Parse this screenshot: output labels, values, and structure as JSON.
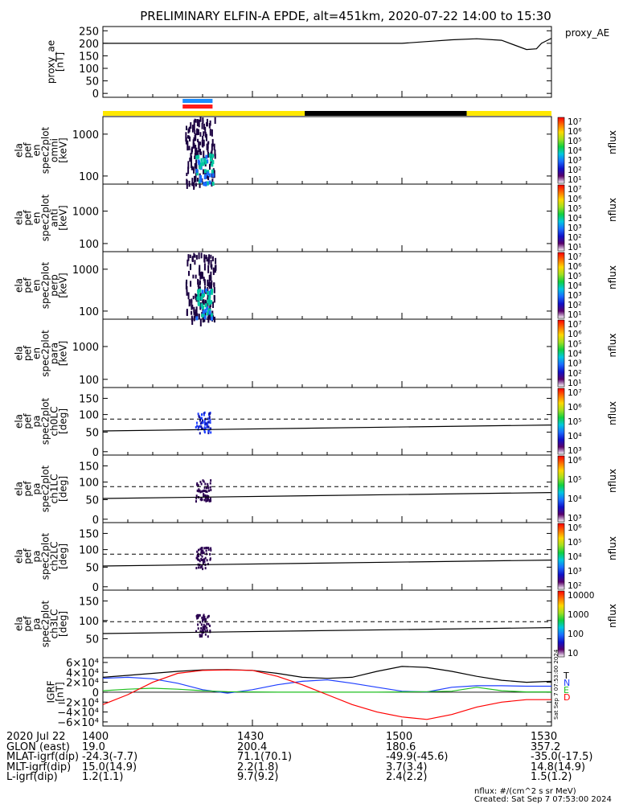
{
  "title": "PRELIMINARY ELFIN-A EPDE, alt=451km, 2020-07-22 14:00 to 15:30",
  "colors": {
    "yellow": "#ffe800",
    "black": "#000000",
    "blue_bar": "#1a8cff",
    "red_bar": "#ff1a1a",
    "T": "#000000",
    "N": "#1f3fff",
    "E": "#20c020",
    "D": "#ff0000"
  },
  "panels": [
    {
      "key": "proxy_ae",
      "ylabel": [
        "proxy_ae",
        "[nT]"
      ],
      "right_label": "proxy_AE",
      "ticks": [
        "250",
        "200",
        "150",
        "100",
        "50",
        "0"
      ]
    },
    {
      "key": "omni",
      "ylabel": [
        "ela",
        "pef",
        "en",
        "spec2plot",
        "omni",
        "[keV]"
      ],
      "ticks": [
        "1000",
        "100"
      ],
      "cbar_ticks": [
        "10⁷",
        "10⁶",
        "10⁵",
        "10⁴",
        "10³",
        "10²",
        "10¹"
      ],
      "cbar_label": "nflux"
    },
    {
      "key": "anti",
      "ylabel": [
        "ela",
        "pef",
        "en",
        "spec2plot",
        "anti",
        "[keV]"
      ],
      "ticks": [
        "1000",
        "100"
      ],
      "cbar_ticks": [
        "10⁷",
        "10⁶",
        "10⁵",
        "10⁴",
        "10³",
        "10²",
        "10¹"
      ],
      "cbar_label": "nflux"
    },
    {
      "key": "perp",
      "ylabel": [
        "ela",
        "pef",
        "en",
        "spec2plot",
        "perp",
        "[keV]"
      ],
      "ticks": [
        "1000",
        "100"
      ],
      "cbar_ticks": [
        "10⁷",
        "10⁶",
        "10⁵",
        "10⁴",
        "10³",
        "10²",
        "10¹"
      ],
      "cbar_label": "nflux"
    },
    {
      "key": "para",
      "ylabel": [
        "ela",
        "pef",
        "en",
        "spec2plot",
        "para",
        "[keV]"
      ],
      "ticks": [
        "1000",
        "100"
      ],
      "cbar_ticks": [
        "10⁷",
        "10⁶",
        "10⁵",
        "10⁴",
        "10³",
        "10²",
        "10¹"
      ],
      "cbar_label": "nflux"
    },
    {
      "key": "ch0",
      "ylabel": [
        "ela",
        "pef",
        "pa",
        "spec2plot",
        "ch0LC",
        "[deg]"
      ],
      "ticks": [
        "150",
        "100",
        "50",
        "0"
      ],
      "cbar_ticks": [
        "10⁷",
        "10⁶",
        "10⁵",
        "10⁴",
        "10³"
      ],
      "cbar_label": "nflux"
    },
    {
      "key": "ch1",
      "ylabel": [
        "ela",
        "pef",
        "pa",
        "spec2plot",
        "ch1LC",
        "[deg]"
      ],
      "ticks": [
        "150",
        "100",
        "50",
        "0"
      ],
      "cbar_ticks": [
        "10⁶",
        "10⁵",
        "10⁴",
        "10³"
      ],
      "cbar_label": "nflux"
    },
    {
      "key": "ch2",
      "ylabel": [
        "ela",
        "pef",
        "pa",
        "spec2plot",
        "ch2LC",
        "[deg]"
      ],
      "ticks": [
        "150",
        "100",
        "50",
        "0"
      ],
      "cbar_ticks": [
        "10⁶",
        "10⁵",
        "10⁴",
        "10³",
        "10²"
      ],
      "cbar_label": "nflux"
    },
    {
      "key": "ch3",
      "ylabel": [
        "ela",
        "pef",
        "pa",
        "spec2plot",
        "ch3LC",
        "[deg]"
      ],
      "ticks": [
        "150",
        "100",
        "50"
      ],
      "cbar_ticks": [
        "10000",
        "1000",
        "100",
        "10"
      ],
      "cbar_label": "nflux"
    },
    {
      "key": "igrf",
      "ylabel": [
        "IGRF",
        "[nT]"
      ],
      "ticks": [
        "6×10⁴",
        "4×10⁴",
        "2×10⁴",
        "0",
        "−2×10⁴",
        "−4×10⁴",
        "−6×10⁴"
      ],
      "legend": [
        "T",
        "N",
        "E",
        "D"
      ],
      "side_text": "Sat Sep  7 07:53:00 2024"
    }
  ],
  "chart_data": {
    "type": "line",
    "time_range": [
      "2020-07-22 14:00",
      "2020-07-22 15:30"
    ],
    "x_tick_labels": [
      "1400",
      "1430",
      "1500",
      "1530"
    ],
    "proxy_ae": {
      "ylim": [
        0,
        260
      ],
      "t_min": [
        0,
        10,
        20,
        30,
        40,
        50,
        60,
        65,
        70,
        75,
        80,
        83,
        85,
        87,
        88,
        90
      ],
      "value": [
        200,
        200,
        200,
        200,
        200,
        200,
        200,
        207,
        214,
        218,
        212,
        190,
        175,
        178,
        200,
        220
      ]
    },
    "igrf": {
      "ylim": [
        -70000,
        70000
      ],
      "t_min": [
        0,
        5,
        10,
        15,
        20,
        25,
        30,
        35,
        40,
        45,
        50,
        55,
        60,
        65,
        70,
        75,
        80,
        85,
        90
      ],
      "T": [
        30000,
        34000,
        38000,
        42000,
        45000,
        45500,
        44000,
        38000,
        30000,
        28000,
        30000,
        42000,
        52000,
        50000,
        42000,
        32000,
        24000,
        20000,
        22000
      ],
      "N": [
        28000,
        30000,
        27000,
        18000,
        5000,
        -2000,
        5000,
        15000,
        22000,
        25000,
        18000,
        10000,
        2000,
        500,
        10000,
        13000,
        13000,
        12000,
        12000
      ],
      "E": [
        3000,
        6000,
        8000,
        6000,
        3000,
        1000,
        500,
        0,
        0,
        0,
        0,
        0,
        500,
        1000,
        2000,
        10000,
        3000,
        500,
        500
      ],
      "D": [
        -25000,
        -5000,
        20000,
        38000,
        44000,
        45000,
        44000,
        32000,
        15000,
        -5000,
        -25000,
        -40000,
        -50000,
        -55000,
        -45000,
        -30000,
        -20000,
        -15000,
        -15000
      ]
    },
    "pa_curves": {
      "ylim": [
        0,
        180
      ],
      "solid_start": 70,
      "solid_end": 90,
      "dashed_level": 110
    },
    "spectrogram_burst_t_min": [
      16,
      23
    ],
    "science_zone_bars": [
      "blue",
      "red"
    ],
    "orbit_bar": [
      {
        "from_min": 0,
        "to_min": 40.5,
        "color": "yellow"
      },
      {
        "from_min": 40.5,
        "to_min": 73,
        "color": "black"
      },
      {
        "from_min": 73,
        "to_min": 90,
        "color": "yellow"
      }
    ]
  },
  "footer": {
    "rows": [
      {
        "label": "2020 Jul 22",
        "values": [
          "1400",
          "1430",
          "1500",
          "1530"
        ]
      },
      {
        "label": "GLON (east)",
        "values": [
          "19.0",
          "200.4",
          "180.6",
          "357.2"
        ]
      },
      {
        "label": "MLAT-igrf(dip)",
        "values": [
          "-24.3(-7.7)",
          "71.1(70.1)",
          "-49.9(-45.6)",
          "-35.0(-17.5)"
        ]
      },
      {
        "label": "MLT-igrf(dip)",
        "values": [
          "15.0(14.9)",
          "2.2(1.8)",
          "3.7(3.4)",
          "14.8(14.9)"
        ]
      },
      {
        "label": "L-igrf(dip)",
        "values": [
          "1.2(1.1)",
          "9.7(9.2)",
          "2.4(2.2)",
          "1.5(1.2)"
        ]
      }
    ],
    "units_note": "nflux: #/(cm^2 s sr MeV)",
    "created": "Created: Sat Sep  7 07:53:00 2024"
  }
}
